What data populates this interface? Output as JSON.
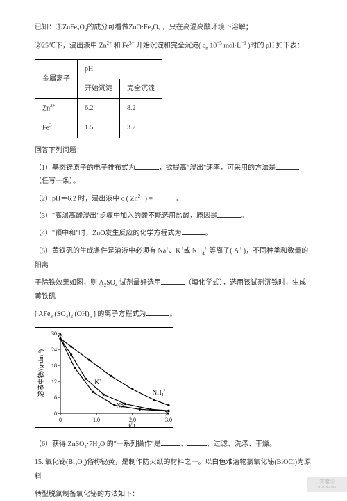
{
  "intro": {
    "line1_pre": "已知：①ZnFe",
    "line1_sub1": "2",
    "line1_mid1": "O",
    "line1_sub2": "4",
    "line1_mid2": "的成分可看做ZnO·Fe",
    "line1_sub3": "2",
    "line1_mid3": "O",
    "line1_sub4": "3",
    "line1_end": " ，只在高温高酸环境下溶解；",
    "line2_pre": "②25℃下，浸出液中 Zn",
    "line2_sup1": "2+",
    "line2_mid1": " 和 Fe",
    "line2_sup2": "3+",
    "line2_mid2": " 开始沉淀和完全沉淀( c",
    "line2_sub1": "n",
    "line2_mid3": " 10",
    "line2_sup3": "−5",
    "line2_end": " mol·L",
    "line2_sup4": "−1",
    "line2_tail": " )时的 pH 如下表："
  },
  "table": {
    "c1_header": "金属离子",
    "c2_header": "pH",
    "sub1": "开始沉淀",
    "sub2": "完全沉淀",
    "rows": [
      {
        "ion_base": "Zn",
        "ion_sup": "2+",
        "a": "6.2",
        "b": "8.2"
      },
      {
        "ion_base": "Fe",
        "ion_sup": "3+",
        "a": "1.5",
        "b": "3.2"
      }
    ]
  },
  "prompt": "回答下列问题：",
  "q1": {
    "pre": "（1）基态锌原子的电子排布式为",
    "mid": "，欲提高\"浸出\"速率，可采用的方法是",
    "end": "（任写一条）。"
  },
  "q2": {
    "pre": "（2）pH＝6.2 时，浸出液中 c ( Zn",
    "sup": "2+",
    "mid": " ) =",
    "end": "。"
  },
  "q3": {
    "pre": "（3）\"高温高酸浸出\"步骤中加入的酸不能选用盐酸，原因是",
    "end": "。"
  },
  "q4": {
    "pre": "（4）\"预中和\"时，ZnO发生反应的化学方程式为",
    "end": "。"
  },
  "q5": {
    "line1_pre": "（5）黄铁矾的生成条件是溶液中必须有 Na",
    "line1_sup1": "+",
    "line1_mid1": "、K",
    "line1_sup2": "+",
    "line1_mid2": "或 NH",
    "line1_sub1": "4",
    "line1_sup3": "+",
    "line1_mid3": " 等离子( A",
    "line1_sup4": "+",
    "line1_end": " )，不同种类和数量的阳离",
    "line2_pre": "子除铁效果如图，则 A",
    "line2_sub": "2",
    "line2_mid": "SO",
    "line2_sub2": "4",
    "line2_mid2": " 试剂最好选用",
    "line2_end": "（填化学式），选用该试剂沉铁时，生成黄铁矾",
    "formula_l": "[ AFe",
    "formula_sub1": "3",
    "formula_m1": " (SO",
    "formula_sub2": "4",
    "formula_m2": ")",
    "formula_sub3": "2",
    "formula_m3": " (OH)",
    "formula_sub4": "6",
    "formula_r": " ] 的离子方程式为",
    "formula_end": "。"
  },
  "chart": {
    "ylabel_pre": "溶液中铁/(g·dm",
    "ylabel_sup": "-3",
    "ylabel_post": ")",
    "xlabel": "t/h",
    "xticks": [
      "0",
      "1.0",
      "2.0",
      "3.0"
    ],
    "yticks": [
      "0",
      "6",
      "12",
      "18",
      "24",
      "30"
    ],
    "series": {
      "K": {
        "label_base": "K",
        "label_sup": "+",
        "color": "#000",
        "points": [
          [
            0,
            28
          ],
          [
            0.3,
            22
          ],
          [
            0.7,
            13
          ],
          [
            1.2,
            7
          ],
          [
            1.8,
            3.5
          ],
          [
            2.5,
            1.5
          ],
          [
            3.0,
            1
          ]
        ]
      },
      "Na": {
        "label_base": "Na",
        "label_sup": "+",
        "color": "#000",
        "points": [
          [
            0,
            28
          ],
          [
            0.4,
            17
          ],
          [
            0.9,
            8
          ],
          [
            1.5,
            3
          ],
          [
            2.2,
            1.5
          ],
          [
            3.0,
            0.8
          ]
        ]
      },
      "NH4": {
        "label_base": "NH",
        "label_sub": "4",
        "label_sup": "+",
        "color": "#000",
        "points": [
          [
            0,
            28
          ],
          [
            0.3,
            25
          ],
          [
            0.8,
            20
          ],
          [
            1.4,
            14
          ],
          [
            2.0,
            9
          ],
          [
            2.6,
            5
          ],
          [
            3.0,
            3
          ]
        ]
      }
    },
    "xlim": [
      0,
      3.0
    ],
    "ylim": [
      0,
      30
    ],
    "plot_bg": "#ffffff",
    "axis_color": "#000000"
  },
  "q6": {
    "pre": "（6）获得 ZnSO",
    "sub1": "4",
    "mid1": "·7H",
    "sub2": "2",
    "mid2": "O 的\"一系列操作\"是",
    "tail": "、过滤、洗涤、干燥。"
  },
  "q15": {
    "line1_pre": "15.  氧化铋(Bi",
    "line1_sub1": "2",
    "line1_mid1": "O",
    "line1_sub2": "5",
    "line1_mid2": ")俗称铋黄，是制作防火纸的材料之一。以白色难溶物氯氧化铋(BiOCl)为原料",
    "line2": "转型脱氯制备氧化铋的方法如下："
  },
  "watermark": {
    "l1": "答案®",
    "l2": "wuxot.com"
  }
}
